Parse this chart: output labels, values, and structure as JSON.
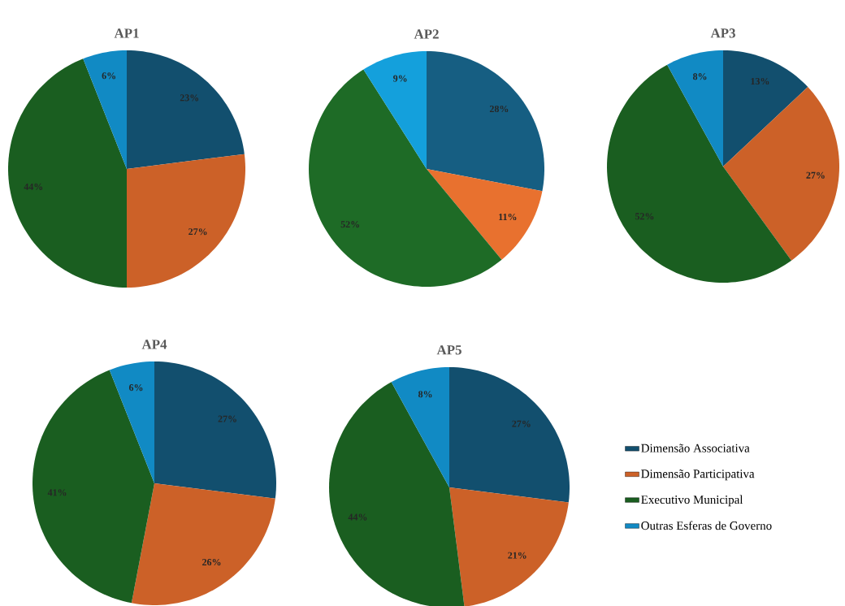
{
  "chart_data": [
    {
      "type": "pie",
      "title": "AP1",
      "categories": [
        null,
        null,
        null,
        null
      ],
      "values": [
        23,
        27,
        44,
        6
      ],
      "colors": [
        "#124f6e",
        "#cc6128",
        "#1a5e20",
        "#118ac4"
      ],
      "value_labels": [
        "23%",
        "27%",
        "44%",
        "6%"
      ]
    },
    {
      "type": "pie",
      "title": "AP2",
      "categories": [
        null,
        null,
        null,
        null
      ],
      "values": [
        28,
        11,
        52,
        9
      ],
      "colors": [
        "#165e82",
        "#e8712f",
        "#1e6b26",
        "#14a0dc"
      ],
      "value_labels": [
        "28%",
        "11%",
        "52%",
        "9%"
      ]
    },
    {
      "type": "pie",
      "title": "AP3",
      "categories": [
        null,
        null,
        null,
        null
      ],
      "values": [
        13,
        27,
        52,
        8
      ],
      "colors": [
        "#124f6e",
        "#cc6128",
        "#1a5e20",
        "#118ac4"
      ],
      "value_labels": [
        "13%",
        "27%",
        "52%",
        "8%"
      ]
    },
    {
      "type": "pie",
      "title": "AP4",
      "categories": [
        null,
        null,
        null,
        null
      ],
      "values": [
        27,
        26,
        41,
        6
      ],
      "colors": [
        "#124f6e",
        "#cc6128",
        "#1a5e20",
        "#118ac4"
      ],
      "value_labels": [
        "27%",
        "26%",
        "41%",
        "6%"
      ]
    },
    {
      "type": "pie",
      "title": "AP5",
      "categories": [
        "Dimensão Associativa",
        "Dimensão Participativa",
        "Executivo Municipal",
        "Outras Esferas de Governo"
      ],
      "values": [
        27,
        21,
        44,
        8
      ],
      "colors": [
        "#124f6e",
        "#cc6128",
        "#1a5e20",
        "#118ac4"
      ],
      "value_labels": [
        "27%",
        "21%",
        "44%",
        "8%"
      ],
      "legend": "right"
    }
  ]
}
